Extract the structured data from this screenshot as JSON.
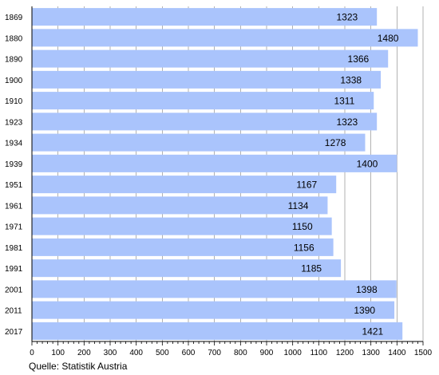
{
  "chart_data": {
    "type": "bar",
    "orientation": "horizontal",
    "categories": [
      "1869",
      "1880",
      "1890",
      "1900",
      "1910",
      "1923",
      "1934",
      "1939",
      "1951",
      "1961",
      "1971",
      "1981",
      "1991",
      "2001",
      "2011",
      "2017"
    ],
    "values": [
      1323,
      1480,
      1366,
      1338,
      1311,
      1323,
      1278,
      1400,
      1167,
      1134,
      1150,
      1156,
      1185,
      1398,
      1390,
      1421
    ],
    "xlim": [
      0,
      1500
    ],
    "xticks": [
      "0",
      "100",
      "200",
      "300",
      "400",
      "500",
      "600",
      "700",
      "800",
      "900",
      "1000",
      "1100",
      "1200",
      "1300",
      "1400",
      "1500"
    ],
    "grid": "vertical",
    "bar_color": "#aac4fc",
    "grid_color": "#7f7f7f",
    "source": "Quelle: Statistik Austria"
  }
}
